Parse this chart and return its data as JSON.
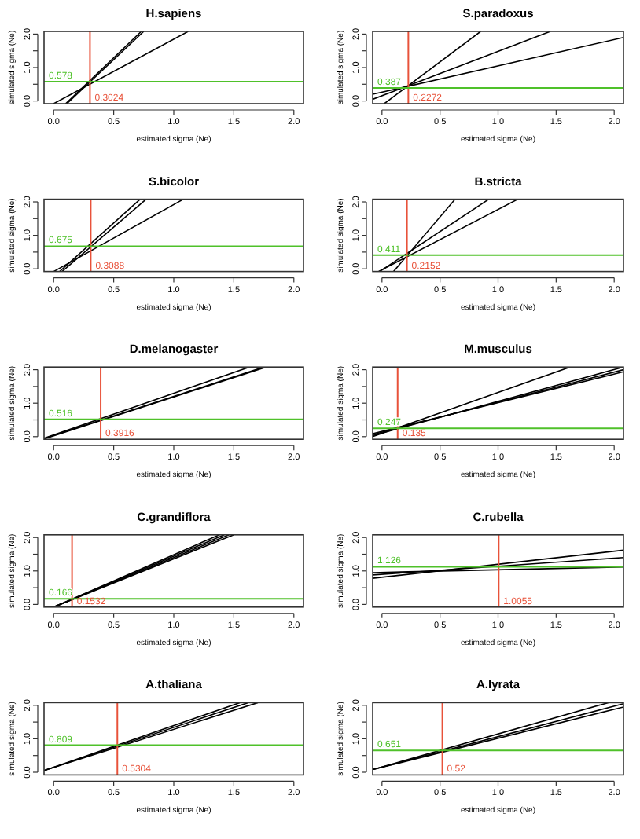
{
  "chart_data": [
    {
      "type": "line",
      "title": "H.sapiens",
      "xlabel": "estimated sigma (Ne)",
      "ylabel": "simulated sigma (Ne)",
      "xlim": [
        -0.08,
        2.08
      ],
      "ylim": [
        -0.08,
        2.08
      ],
      "xticks": [
        {
          "value": 0,
          "label": "0.0"
        },
        {
          "value": 0.5,
          "label": "0.5"
        },
        {
          "value": 1,
          "label": "1.0"
        },
        {
          "value": 1.5,
          "label": "1.5"
        },
        {
          "value": 2,
          "label": "2.0"
        }
      ],
      "yticks": [
        {
          "value": 0,
          "label": "0.0"
        },
        {
          "value": 0.5,
          "label": null
        },
        {
          "value": 1,
          "label": "1.0"
        },
        {
          "value": 1.5,
          "label": null
        },
        {
          "value": 2,
          "label": "2.0"
        }
      ],
      "series": [
        {
          "color": "#000000",
          "x": [
            0,
            1.12
          ],
          "values": [
            -0.08,
            2.08
          ]
        },
        {
          "color": "#000000",
          "x": [
            0.1,
            0.73
          ],
          "values": [
            -0.08,
            2.08
          ]
        },
        {
          "color": "#000000",
          "x": [
            0.11,
            0.75
          ],
          "values": [
            -0.08,
            2.08
          ]
        }
      ],
      "ref_lines": [
        {
          "axis": "x",
          "value": 0.3024,
          "label": "0.3024",
          "color": "#e8523a"
        },
        {
          "axis": "y",
          "value": 0.578,
          "label": "0.578",
          "color": "#4fc12a"
        }
      ]
    },
    {
      "type": "line",
      "title": "S.paradoxus",
      "xlabel": "estimated sigma (Ne)",
      "ylabel": "simulated sigma (Ne)",
      "xlim": [
        -0.08,
        2.08
      ],
      "ylim": [
        -0.08,
        2.08
      ],
      "xticks": [
        {
          "value": 0,
          "label": "0.0"
        },
        {
          "value": 0.5,
          "label": "0.5"
        },
        {
          "value": 1,
          "label": "1.0"
        },
        {
          "value": 1.5,
          "label": "1.5"
        },
        {
          "value": 2,
          "label": "2.0"
        }
      ],
      "yticks": [
        {
          "value": 0,
          "label": "0.0"
        },
        {
          "value": 0.5,
          "label": null
        },
        {
          "value": 1,
          "label": "1.0"
        },
        {
          "value": 1.5,
          "label": null
        },
        {
          "value": 2,
          "label": "2.0"
        }
      ],
      "series": [
        {
          "color": "#000000",
          "x": [
            0.02,
            0.85
          ],
          "values": [
            -0.08,
            2.08
          ]
        },
        {
          "color": "#000000",
          "x": [
            -0.08,
            1.45
          ],
          "values": [
            0.05,
            2.08
          ]
        },
        {
          "color": "#000000",
          "x": [
            -0.08,
            2.08
          ],
          "values": [
            0.2,
            1.9
          ]
        }
      ],
      "ref_lines": [
        {
          "axis": "x",
          "value": 0.2272,
          "label": "0.2272",
          "color": "#e8523a"
        },
        {
          "axis": "y",
          "value": 0.387,
          "label": "0.387",
          "color": "#4fc12a"
        }
      ]
    },
    {
      "type": "line",
      "title": "S.bicolor",
      "xlabel": "estimated sigma (Ne)",
      "ylabel": "simulated sigma (Ne)",
      "xlim": [
        -0.08,
        2.08
      ],
      "ylim": [
        -0.08,
        2.08
      ],
      "xticks": [
        {
          "value": 0,
          "label": "0.0"
        },
        {
          "value": 0.5,
          "label": "0.5"
        },
        {
          "value": 1,
          "label": "1.0"
        },
        {
          "value": 1.5,
          "label": "1.5"
        },
        {
          "value": 2,
          "label": "2.0"
        }
      ],
      "yticks": [
        {
          "value": 0,
          "label": "0.0"
        },
        {
          "value": 0.5,
          "label": null
        },
        {
          "value": 1,
          "label": "1.0"
        },
        {
          "value": 1.5,
          "label": null
        },
        {
          "value": 2,
          "label": "2.0"
        }
      ],
      "series": [
        {
          "color": "#000000",
          "x": [
            0,
            1.08
          ],
          "values": [
            -0.08,
            2.08
          ]
        },
        {
          "color": "#000000",
          "x": [
            0.05,
            0.72
          ],
          "values": [
            -0.08,
            2.08
          ]
        },
        {
          "color": "#000000",
          "x": [
            0.07,
            0.77
          ],
          "values": [
            -0.08,
            2.08
          ]
        }
      ],
      "ref_lines": [
        {
          "axis": "x",
          "value": 0.3088,
          "label": "0.3088",
          "color": "#e8523a"
        },
        {
          "axis": "y",
          "value": 0.675,
          "label": "0.675",
          "color": "#4fc12a"
        }
      ]
    },
    {
      "type": "line",
      "title": "B.stricta",
      "xlabel": "estimated sigma (Ne)",
      "ylabel": "simulated sigma (Ne)",
      "xlim": [
        -0.08,
        2.08
      ],
      "ylim": [
        -0.08,
        2.08
      ],
      "xticks": [
        {
          "value": 0,
          "label": "0.0"
        },
        {
          "value": 0.5,
          "label": "0.5"
        },
        {
          "value": 1,
          "label": "1.0"
        },
        {
          "value": 1.5,
          "label": "1.5"
        },
        {
          "value": 2,
          "label": "2.0"
        }
      ],
      "yticks": [
        {
          "value": 0,
          "label": "0.0"
        },
        {
          "value": 0.5,
          "label": null
        },
        {
          "value": 1,
          "label": "1.0"
        },
        {
          "value": 1.5,
          "label": null
        },
        {
          "value": 2,
          "label": "2.0"
        }
      ],
      "series": [
        {
          "color": "#000000",
          "x": [
            0.1,
            0.63
          ],
          "values": [
            -0.08,
            2.08
          ]
        },
        {
          "color": "#000000",
          "x": [
            -0.02,
            0.92
          ],
          "values": [
            -0.08,
            2.08
          ]
        },
        {
          "color": "#000000",
          "x": [
            -0.03,
            1.17
          ],
          "values": [
            -0.08,
            2.08
          ]
        }
      ],
      "ref_lines": [
        {
          "axis": "x",
          "value": 0.2152,
          "label": "0.2152",
          "color": "#e8523a"
        },
        {
          "axis": "y",
          "value": 0.411,
          "label": "0.411",
          "color": "#4fc12a"
        }
      ]
    },
    {
      "type": "line",
      "title": "D.melanogaster",
      "xlabel": "estimated sigma (Ne)",
      "ylabel": "simulated sigma (Ne)",
      "xlim": [
        -0.08,
        2.08
      ],
      "ylim": [
        -0.08,
        2.08
      ],
      "xticks": [
        {
          "value": 0,
          "label": "0.0"
        },
        {
          "value": 0.5,
          "label": "0.5"
        },
        {
          "value": 1,
          "label": "1.0"
        },
        {
          "value": 1.5,
          "label": "1.5"
        },
        {
          "value": 2,
          "label": "2.0"
        }
      ],
      "yticks": [
        {
          "value": 0,
          "label": "0.0"
        },
        {
          "value": 0.5,
          "label": null
        },
        {
          "value": 1,
          "label": "1.0"
        },
        {
          "value": 1.5,
          "label": null
        },
        {
          "value": 2,
          "label": "2.0"
        }
      ],
      "series": [
        {
          "color": "#000000",
          "x": [
            -0.08,
            1.75
          ],
          "values": [
            -0.06,
            2.08
          ]
        },
        {
          "color": "#000000",
          "x": [
            -0.08,
            1.77
          ],
          "values": [
            -0.07,
            2.08
          ]
        },
        {
          "color": "#000000",
          "x": [
            -0.08,
            1.63
          ],
          "values": [
            -0.05,
            2.08
          ]
        }
      ],
      "ref_lines": [
        {
          "axis": "x",
          "value": 0.3916,
          "label": "0.3916",
          "color": "#e8523a"
        },
        {
          "axis": "y",
          "value": 0.516,
          "label": "0.516",
          "color": "#4fc12a"
        }
      ]
    },
    {
      "type": "line",
      "title": "M.musculus",
      "xlabel": "estimated sigma (Ne)",
      "ylabel": "simulated sigma (Ne)",
      "xlim": [
        -0.08,
        2.08
      ],
      "ylim": [
        -0.08,
        2.08
      ],
      "xticks": [
        {
          "value": 0,
          "label": "0.0"
        },
        {
          "value": 0.5,
          "label": "0.5"
        },
        {
          "value": 1,
          "label": "1.0"
        },
        {
          "value": 1.5,
          "label": "1.5"
        },
        {
          "value": 2,
          "label": "2.0"
        }
      ],
      "yticks": [
        {
          "value": 0,
          "label": "0.0"
        },
        {
          "value": 0.5,
          "label": null
        },
        {
          "value": 1,
          "label": "1.0"
        },
        {
          "value": 1.5,
          "label": null
        },
        {
          "value": 2,
          "label": "2.0"
        }
      ],
      "series": [
        {
          "color": "#000000",
          "x": [
            -0.08,
            1.62
          ],
          "values": [
            0.0,
            2.08
          ]
        },
        {
          "color": "#000000",
          "x": [
            -0.08,
            2.08
          ],
          "values": [
            0.03,
            2.08
          ]
        },
        {
          "color": "#000000",
          "x": [
            -0.08,
            2.08
          ],
          "values": [
            0.06,
            2.0
          ]
        },
        {
          "color": "#000000",
          "x": [
            -0.08,
            2.08
          ],
          "values": [
            0.09,
            1.94
          ]
        }
      ],
      "ref_lines": [
        {
          "axis": "x",
          "value": 0.135,
          "label": "0.135",
          "color": "#e8523a"
        },
        {
          "axis": "y",
          "value": 0.247,
          "label": "0.247",
          "color": "#4fc12a"
        }
      ]
    },
    {
      "type": "line",
      "title": "C.grandiflora",
      "xlabel": "estimated sigma (Ne)",
      "ylabel": "simulated sigma (Ne)",
      "xlim": [
        -0.08,
        2.08
      ],
      "ylim": [
        -0.08,
        2.08
      ],
      "xticks": [
        {
          "value": 0,
          "label": "0.0"
        },
        {
          "value": 0.5,
          "label": "0.5"
        },
        {
          "value": 1,
          "label": "1.0"
        },
        {
          "value": 1.5,
          "label": "1.5"
        },
        {
          "value": 2,
          "label": "2.0"
        }
      ],
      "yticks": [
        {
          "value": 0,
          "label": "0.0"
        },
        {
          "value": 0.5,
          "label": null
        },
        {
          "value": 1,
          "label": "1.0"
        },
        {
          "value": 1.5,
          "label": null
        },
        {
          "value": 2,
          "label": "2.0"
        }
      ],
      "series": [
        {
          "color": "#000000",
          "x": [
            0,
            1.38
          ],
          "values": [
            -0.08,
            2.08
          ]
        },
        {
          "color": "#000000",
          "x": [
            0,
            1.42
          ],
          "values": [
            -0.08,
            2.08
          ]
        },
        {
          "color": "#000000",
          "x": [
            0,
            1.46
          ],
          "values": [
            -0.08,
            2.08
          ]
        },
        {
          "color": "#000000",
          "x": [
            0,
            1.5
          ],
          "values": [
            -0.08,
            2.08
          ]
        }
      ],
      "ref_lines": [
        {
          "axis": "x",
          "value": 0.1532,
          "label": "0.1532",
          "color": "#e8523a"
        },
        {
          "axis": "y",
          "value": 0.166,
          "label": "0.166",
          "color": "#4fc12a"
        }
      ]
    },
    {
      "type": "line",
      "title": "C.rubella",
      "xlabel": "estimated sigma (Ne)",
      "ylabel": "simulated sigma (Ne)",
      "xlim": [
        -0.08,
        2.08
      ],
      "ylim": [
        -0.08,
        2.08
      ],
      "xticks": [
        {
          "value": 0,
          "label": "0.0"
        },
        {
          "value": 0.5,
          "label": "0.5"
        },
        {
          "value": 1,
          "label": "1.0"
        },
        {
          "value": 1.5,
          "label": "1.5"
        },
        {
          "value": 2,
          "label": "2.0"
        }
      ],
      "yticks": [
        {
          "value": 0,
          "label": "0.0"
        },
        {
          "value": 0.5,
          "label": null
        },
        {
          "value": 1,
          "label": "1.0"
        },
        {
          "value": 1.5,
          "label": null
        },
        {
          "value": 2,
          "label": "2.0"
        }
      ],
      "series": [
        {
          "color": "#000000",
          "x": [
            -0.08,
            2.08
          ],
          "values": [
            0.78,
            1.62
          ]
        },
        {
          "color": "#000000",
          "x": [
            -0.08,
            2.08
          ],
          "values": [
            0.88,
            1.4
          ]
        },
        {
          "color": "#000000",
          "x": [
            -0.08,
            2.08
          ],
          "values": [
            0.95,
            1.12
          ]
        }
      ],
      "ref_lines": [
        {
          "axis": "x",
          "value": 1.0055,
          "label": "1.0055",
          "color": "#e8523a"
        },
        {
          "axis": "y",
          "value": 1.126,
          "label": "1.126",
          "color": "#4fc12a"
        }
      ]
    },
    {
      "type": "line",
      "title": "A.thaliana",
      "xlabel": "estimated sigma (Ne)",
      "ylabel": "simulated sigma (Ne)",
      "xlim": [
        -0.08,
        2.08
      ],
      "ylim": [
        -0.08,
        2.08
      ],
      "xticks": [
        {
          "value": 0,
          "label": "0.0"
        },
        {
          "value": 0.5,
          "label": "0.5"
        },
        {
          "value": 1,
          "label": "1.0"
        },
        {
          "value": 1.5,
          "label": "1.5"
        },
        {
          "value": 2,
          "label": "2.0"
        }
      ],
      "yticks": [
        {
          "value": 0,
          "label": "0.0"
        },
        {
          "value": 0.5,
          "label": null
        },
        {
          "value": 1,
          "label": "1.0"
        },
        {
          "value": 1.5,
          "label": null
        },
        {
          "value": 2,
          "label": "2.0"
        }
      ],
      "series": [
        {
          "color": "#000000",
          "x": [
            -0.08,
            1.55
          ],
          "values": [
            0.05,
            2.08
          ]
        },
        {
          "color": "#000000",
          "x": [
            -0.08,
            1.62
          ],
          "values": [
            0.05,
            2.08
          ]
        },
        {
          "color": "#000000",
          "x": [
            -0.08,
            1.7
          ],
          "values": [
            0.05,
            2.08
          ]
        }
      ],
      "ref_lines": [
        {
          "axis": "x",
          "value": 0.5304,
          "label": "0.5304",
          "color": "#e8523a"
        },
        {
          "axis": "y",
          "value": 0.809,
          "label": "0.809",
          "color": "#4fc12a"
        }
      ]
    },
    {
      "type": "line",
      "title": "A.lyrata",
      "xlabel": "estimated sigma (Ne)",
      "ylabel": "simulated sigma (Ne)",
      "xlim": [
        -0.08,
        2.08
      ],
      "ylim": [
        -0.08,
        2.08
      ],
      "xticks": [
        {
          "value": 0,
          "label": "0.0"
        },
        {
          "value": 0.5,
          "label": "0.5"
        },
        {
          "value": 1,
          "label": "1.0"
        },
        {
          "value": 1.5,
          "label": "1.5"
        },
        {
          "value": 2,
          "label": "2.0"
        }
      ],
      "yticks": [
        {
          "value": 0,
          "label": "0.0"
        },
        {
          "value": 0.5,
          "label": null
        },
        {
          "value": 1,
          "label": "1.0"
        },
        {
          "value": 1.5,
          "label": null
        },
        {
          "value": 2,
          "label": "2.0"
        }
      ],
      "series": [
        {
          "color": "#000000",
          "x": [
            -0.08,
            1.95
          ],
          "values": [
            0.08,
            2.08
          ]
        },
        {
          "color": "#000000",
          "x": [
            -0.08,
            2.08
          ],
          "values": [
            0.08,
            2.05
          ]
        },
        {
          "color": "#000000",
          "x": [
            -0.08,
            2.08
          ],
          "values": [
            0.08,
            1.95
          ]
        }
      ],
      "ref_lines": [
        {
          "axis": "x",
          "value": 0.52,
          "label": "0.52",
          "color": "#e8523a"
        },
        {
          "axis": "y",
          "value": 0.651,
          "label": "0.651",
          "color": "#4fc12a"
        }
      ]
    }
  ]
}
